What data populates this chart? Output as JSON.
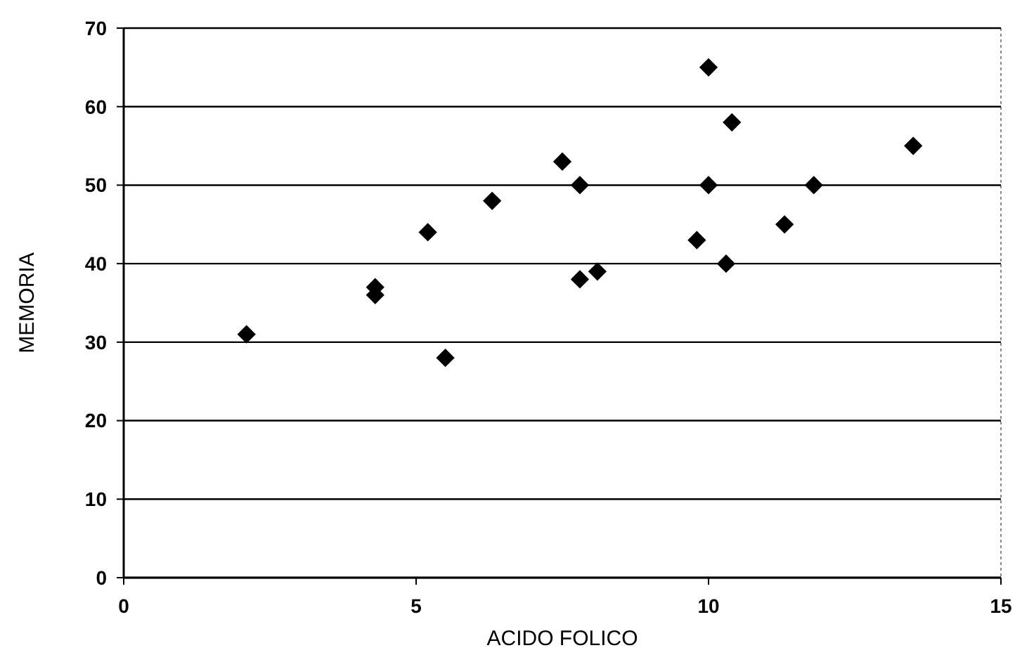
{
  "chart_data": {
    "type": "scatter",
    "xlabel": "ACIDO FOLICO",
    "ylabel": "MEMORIA",
    "xlim": [
      0,
      15
    ],
    "xticks": [
      0,
      5,
      10,
      15
    ],
    "ylim": [
      0,
      70
    ],
    "yticks": [
      0,
      10,
      20,
      30,
      40,
      50,
      60,
      70
    ],
    "grid": "y",
    "marker": "diamond",
    "series": [
      {
        "color": "#000000",
        "x": [
          2.1,
          4.3,
          4.3,
          5.2,
          5.5,
          6.3,
          7.5,
          7.8,
          7.8,
          8.1,
          9.8,
          10,
          10,
          10.3,
          10.4,
          11.3,
          11.8,
          13.5
        ],
        "values": [
          31,
          37,
          36,
          44,
          28,
          48,
          53,
          50,
          38,
          39,
          43,
          65,
          50,
          40,
          58,
          45,
          50,
          55
        ]
      }
    ]
  }
}
